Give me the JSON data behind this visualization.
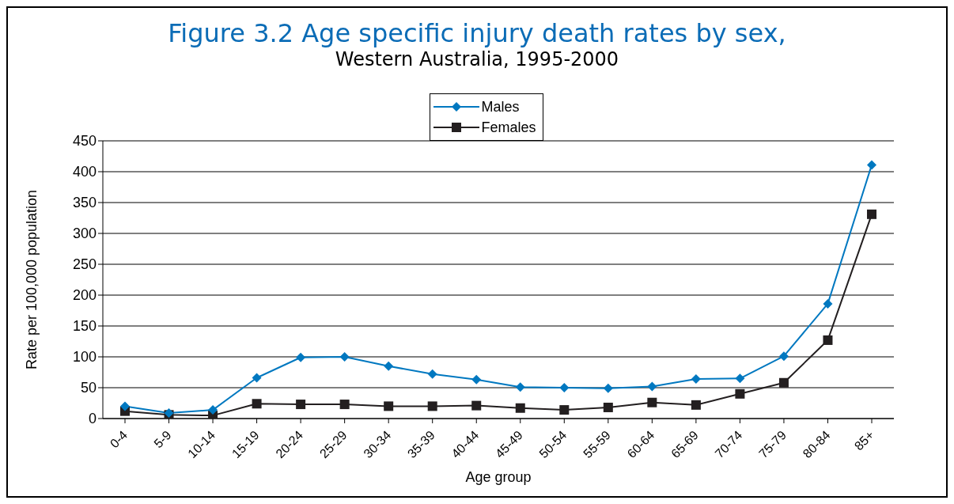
{
  "chart_data": {
    "type": "line",
    "title": "Figure 3.2 Age specific injury death rates by sex,",
    "subtitle": "Western Australia, 1995-2000",
    "xlabel": "Age group",
    "ylabel": "Rate per 100,000 population",
    "categories": [
      "0-4",
      "5-9",
      "10-14",
      "15-19",
      "20-24",
      "25-29",
      "30-34",
      "35-39",
      "40-44",
      "45-49",
      "50-54",
      "55-59",
      "60-64",
      "65-69",
      "70-74",
      "75-79",
      "80-84",
      "85+"
    ],
    "series": [
      {
        "name": "Males",
        "color": "#0078c0",
        "marker": "diamond",
        "values": [
          20,
          9,
          14,
          66,
          99,
          100,
          85,
          72,
          63,
          51,
          50,
          49,
          52,
          64,
          65,
          101,
          186,
          411
        ]
      },
      {
        "name": "Females",
        "color": "#231f20",
        "marker": "square",
        "values": [
          12,
          6,
          5,
          24,
          23,
          23,
          20,
          20,
          21,
          17,
          14,
          18,
          26,
          22,
          40,
          58,
          127,
          331
        ]
      }
    ],
    "ylim": [
      0,
      450
    ],
    "yticks": [
      0,
      50,
      100,
      150,
      200,
      250,
      300,
      350,
      400,
      450
    ],
    "grid": "y",
    "legend": "top"
  }
}
